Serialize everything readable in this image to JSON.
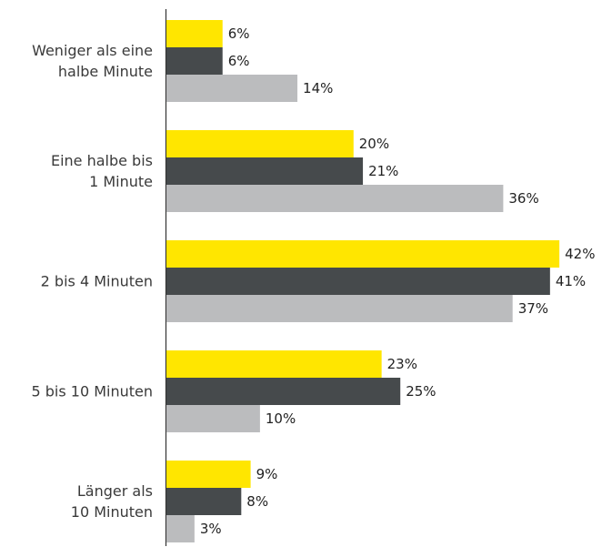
{
  "chart_data": {
    "type": "hbar",
    "categories": [
      "Weniger als eine\nhalbe Minute",
      "Eine halbe bis\n1 Minute",
      "2 bis 4 Minuten",
      "5 bis 10 Minuten",
      "Länger als\n10 Minuten"
    ],
    "series": [
      {
        "color": "#ffe600",
        "values": [
          6,
          20,
          42,
          23,
          9
        ],
        "value_labels": [
          "6%",
          "20%",
          "42%",
          "23%",
          "9%"
        ]
      },
      {
        "color": "#464a4c",
        "values": [
          6,
          21,
          41,
          25,
          8
        ],
        "value_labels": [
          "6%",
          "21%",
          "41%",
          "25%",
          "8%"
        ]
      },
      {
        "color": "#bbbcbe",
        "values": [
          14,
          36,
          37,
          10,
          3
        ],
        "value_labels": [
          "14%",
          "36%",
          "37%",
          "10%",
          "3%"
        ]
      }
    ],
    "xlim": [
      0,
      45
    ]
  }
}
